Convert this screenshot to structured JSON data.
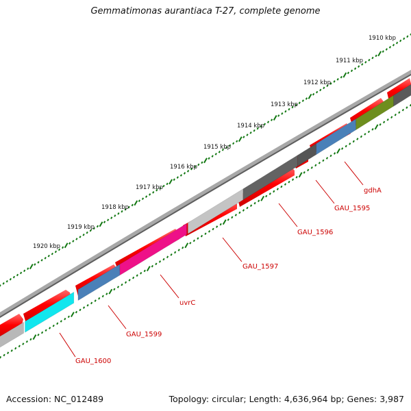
{
  "title": "Gemmatimonas aurantiaca T-27, complete genome",
  "footer": {
    "accession": "Accession: NC_012489",
    "topology": "Topology: circular; Length: 4,636,964 bp; Genes: 3,987"
  },
  "scale_labels": [
    {
      "kbp": 1910,
      "label": "1910 kbp"
    },
    {
      "kbp": 1911,
      "label": "1911 kbp"
    },
    {
      "kbp": 1912,
      "label": "1912 kbp"
    },
    {
      "kbp": 1913,
      "label": "1913 kbp"
    },
    {
      "kbp": 1914,
      "label": "1914 kbp"
    },
    {
      "kbp": 1915,
      "label": "1915 kbp"
    },
    {
      "kbp": 1916,
      "label": "1916 kbp"
    },
    {
      "kbp": 1917,
      "label": "1917 kbp"
    },
    {
      "kbp": 1918,
      "label": "1918 kbp"
    },
    {
      "kbp": 1919,
      "label": "1919 kbp"
    },
    {
      "kbp": 1920,
      "label": "1920 kbp"
    }
  ],
  "genes": [
    {
      "name": "gdhA",
      "color": "#6e8e1e"
    },
    {
      "name": "GAU_1595",
      "color": "#4a80b8"
    },
    {
      "name": "GAU_1596",
      "color": "#636363"
    },
    {
      "name": "GAU_1597",
      "color": "#c4c4c4"
    },
    {
      "name": "uvrC",
      "color": "#ee1188"
    },
    {
      "name": "GAU_1599",
      "color": "#4a80b8"
    },
    {
      "name": "GAU_1600",
      "color": "#11e6ee"
    }
  ],
  "colors": {
    "cds": "#ff0000",
    "gene_label": "#cc0000",
    "tick": "#117711",
    "backbone": "#888888"
  }
}
